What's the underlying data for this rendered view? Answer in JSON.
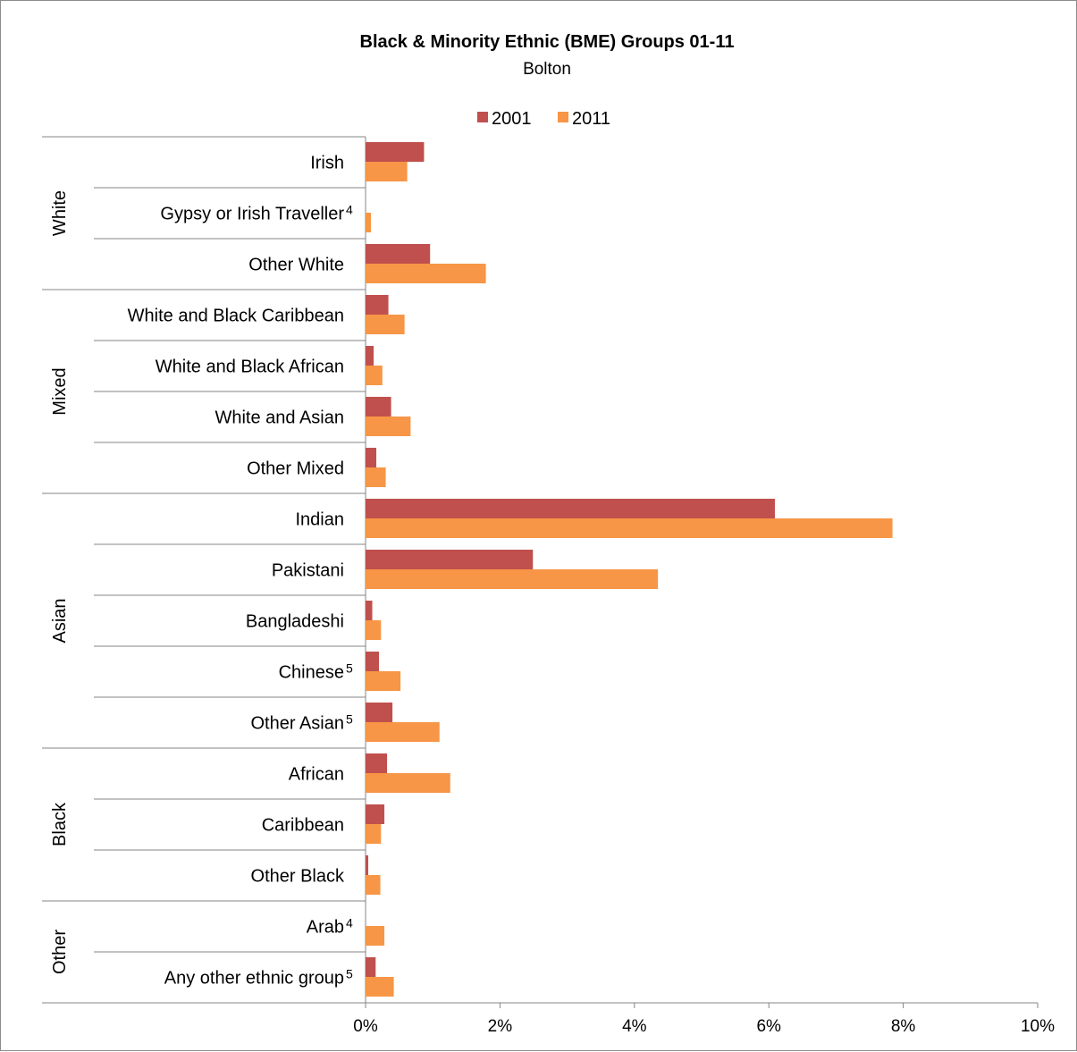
{
  "chart_data": {
    "type": "bar",
    "orientation": "horizontal",
    "title": "Black & Minority Ethnic (BME) Groups 01-11",
    "subtitle": "Bolton",
    "legend_position": "top",
    "grid": false,
    "xlim": [
      0,
      10
    ],
    "x_ticks": [
      "0%",
      "2%",
      "4%",
      "6%",
      "8%",
      "10%"
    ],
    "groups": [
      {
        "name": "White",
        "categories": [
          {
            "label": "Irish",
            "note": ""
          },
          {
            "label": "Gypsy or Irish Traveller",
            "note": "4"
          },
          {
            "label": "Other White",
            "note": ""
          }
        ]
      },
      {
        "name": "Mixed",
        "categories": [
          {
            "label": "White and Black Caribbean",
            "note": ""
          },
          {
            "label": "White and Black African",
            "note": ""
          },
          {
            "label": "White and Asian",
            "note": ""
          },
          {
            "label": "Other Mixed",
            "note": ""
          }
        ]
      },
      {
        "name": "Asian",
        "categories": [
          {
            "label": "Indian",
            "note": ""
          },
          {
            "label": "Pakistani",
            "note": ""
          },
          {
            "label": "Bangladeshi",
            "note": ""
          },
          {
            "label": "Chinese",
            "note": "5"
          },
          {
            "label": "Other Asian",
            "note": "5"
          }
        ]
      },
      {
        "name": "Black",
        "categories": [
          {
            "label": "African",
            "note": ""
          },
          {
            "label": "Caribbean",
            "note": ""
          },
          {
            "label": "Other Black",
            "note": ""
          }
        ]
      },
      {
        "name": "Other",
        "categories": [
          {
            "label": "Arab",
            "note": "4"
          },
          {
            "label": "Any other ethnic group",
            "note": "5"
          }
        ]
      }
    ],
    "series": [
      {
        "name": "2001",
        "color": "#c0504d",
        "values": [
          0.87,
          null,
          0.96,
          0.34,
          0.12,
          0.38,
          0.16,
          6.09,
          2.49,
          0.1,
          0.2,
          0.4,
          0.32,
          0.28,
          0.04,
          null,
          0.15
        ]
      },
      {
        "name": "2011",
        "color": "#f79646",
        "values": [
          0.62,
          0.08,
          1.79,
          0.58,
          0.25,
          0.67,
          0.3,
          7.84,
          4.35,
          0.23,
          0.52,
          1.1,
          1.26,
          0.23,
          0.22,
          0.28,
          0.42
        ]
      }
    ]
  }
}
